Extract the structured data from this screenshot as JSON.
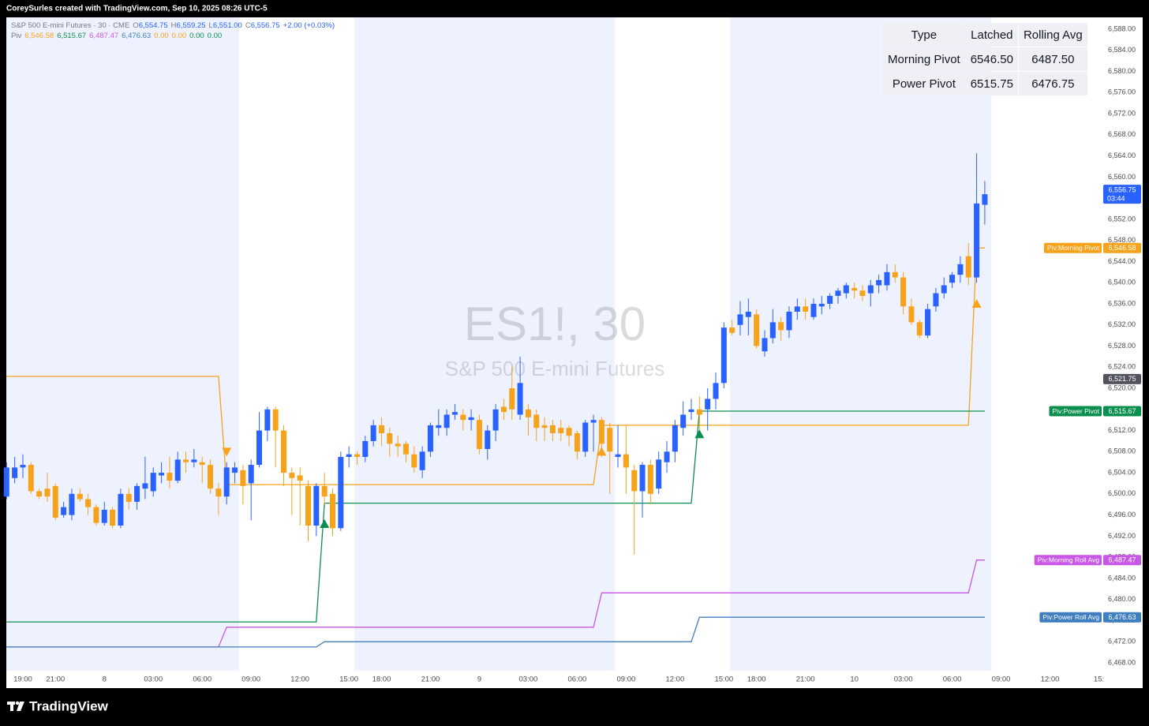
{
  "header": {
    "credit": "CoreySurles created with TradingView.com, Sep 10, 2025 08:26 UTC-5"
  },
  "footer": {
    "brand": "TradingView"
  },
  "chart_data": {
    "type": "candlestick",
    "watermark": {
      "symbol": "ES1!, 30",
      "description": "S&P 500 E-mini Futures"
    },
    "legend": {
      "symbol": "S&P 500 E-mini Futures · 30 · CME",
      "ohlc": [
        {
          "key": "O",
          "value": "6,554.75"
        },
        {
          "key": "H",
          "value": "6,559.25"
        },
        {
          "key": "L",
          "value": "6,551.00"
        },
        {
          "key": "C",
          "value": "6,556.75"
        }
      ],
      "change": "+2.00 (+0.03%)",
      "indicator": "Piv",
      "indicator_values": [
        {
          "text": "6,546.58",
          "color": "#f7a21b"
        },
        {
          "text": "6,515.67",
          "color": "#0b8f4f"
        },
        {
          "text": "6,487.47",
          "color": "#c957e6"
        },
        {
          "text": "6,476.63",
          "color": "#3f7ebf"
        },
        {
          "text": "0.00",
          "color": "#f7a21b"
        },
        {
          "text": "0.00",
          "color": "#f7a21b"
        },
        {
          "text": "0.00",
          "color": "#0b8f4f"
        },
        {
          "text": "0.00",
          "color": "#0b8f4f"
        }
      ]
    },
    "table": {
      "header": [
        "Type",
        "Latched",
        "Rolling Avg"
      ],
      "rows": [
        [
          "Morning Pivot",
          "6546.50",
          "6487.50"
        ],
        [
          "Power Pivot",
          "6515.75",
          "6476.75"
        ]
      ]
    },
    "up_color": "#2962ff",
    "down_color": "#f7a21b",
    "categories": [
      null,
      null,
      "19:00",
      null,
      null,
      null,
      "21:00",
      null,
      null,
      null,
      null,
      null,
      "8",
      null,
      null,
      null,
      null,
      null,
      "03:00",
      null,
      null,
      null,
      null,
      null,
      "06:00",
      null,
      null,
      null,
      null,
      null,
      "09:00",
      null,
      null,
      null,
      null,
      null,
      "12:00",
      null,
      null,
      null,
      null,
      null,
      "15:00",
      null,
      null,
      null,
      "18:00",
      null,
      null,
      null,
      null,
      null,
      "21:00",
      null,
      null,
      null,
      null,
      null,
      "9",
      null,
      null,
      null,
      null,
      null,
      "03:00",
      null,
      null,
      null,
      null,
      null,
      "06:00",
      null,
      null,
      null,
      null,
      null,
      "09:00",
      null,
      null,
      null,
      null,
      null,
      "12:00",
      null,
      null,
      null,
      null,
      null,
      "15:00",
      null,
      null,
      null,
      "18:00",
      null,
      null,
      null,
      null,
      null,
      "21:00",
      null,
      null,
      null,
      null,
      null,
      "10",
      null,
      null,
      null,
      null,
      null,
      "03:00",
      null,
      null,
      null,
      null,
      null,
      "06:00",
      null,
      null,
      null,
      null
    ],
    "future_categories": [
      "09:00",
      "12:00",
      "15:"
    ],
    "open": [
      6499.5,
      6503,
      6505,
      6505.5,
      6500.5,
      6501,
      6501.5,
      6496,
      6496,
      6500,
      6499,
      6497.5,
      6494.5,
      6497,
      6494,
      6500,
      6498.5,
      6501,
      6500.5,
      6503.5,
      6504,
      6502.5,
      6506.5,
      6506,
      6506,
      6505.5,
      6501,
      6499.5,
      6504,
      6504.5,
      6502,
      6505.5,
      6512,
      6516,
      6512,
      6504,
      6503.5,
      6501.5,
      6494,
      6501.5,
      6500,
      6493.5,
      6507,
      6507.5,
      6507,
      6510,
      6513,
      6511.5,
      6509.5,
      6509.5,
      6507.5,
      6504.5,
      6508,
      6512.5,
      6512.5,
      6515,
      6515,
      6514,
      6514,
      6508.5,
      6512,
      6516.5,
      6520,
      6515,
      6516,
      6515,
      6513,
      6513,
      6512.5,
      6512.5,
      6511.5,
      6508,
      6513.5,
      6514,
      6512.5,
      6507,
      6507.5,
      6504.5,
      6500.5,
      6505.5,
      6501,
      6506,
      6508,
      6512.5,
      6515.5,
      6516,
      6516,
      6518,
      6521,
      6531.5,
      6532,
      6533.5,
      6534,
      6527,
      6529.5,
      6532.5,
      6531,
      6534.5,
      6535.5,
      6533.5,
      6535.5,
      6536,
      6537.5,
      6538,
      6539,
      6538.5,
      6538,
      6539.5,
      6539.5,
      6542,
      6541,
      6535.5,
      6532.5,
      6530,
      6535.5,
      6538,
      6540,
      6541.5,
      6545,
      6541,
      6554.75
    ],
    "high": [
      6506,
      6507,
      6507.5,
      6506,
      6501,
      6504,
      6502,
      6498.5,
      6501,
      6501,
      6500,
      6498,
      6498.5,
      6497.5,
      6501,
      6501,
      6502,
      6507,
      6505,
      6506,
      6507,
      6508,
      6508,
      6508.5,
      6507,
      6506.5,
      6502,
      6506,
      6506,
      6505.5,
      6506.5,
      6515.5,
      6516.5,
      6516.5,
      6513,
      6505,
      6505,
      6502.5,
      6502,
      6504,
      6501,
      6508,
      6509,
      6508,
      6511,
      6514,
      6514.5,
      6512.5,
      6511,
      6510,
      6509,
      6509,
      6513.5,
      6516,
      6516,
      6517,
      6516,
      6516,
      6515,
      6513,
      6517,
      6518,
      6524,
      6526,
      6517,
      6516,
      6514.5,
      6514,
      6514,
      6513,
      6512,
      6514,
      6515,
      6514.5,
      6513.5,
      6513,
      6513,
      6505.5,
      6506,
      6506.5,
      6508,
      6510,
      6514,
      6517.5,
      6518,
      6518.5,
      6520,
      6523,
      6532.5,
      6533,
      6536.5,
      6537,
      6535,
      6531,
      6535,
      6533.5,
      6535.5,
      6537,
      6537,
      6537,
      6537.5,
      6538,
      6539,
      6540,
      6540,
      6539.5,
      6540.5,
      6541.5,
      6543.5,
      6543.5,
      6542,
      6537,
      6533,
      6536,
      6539,
      6541,
      6542,
      6545,
      6547.5,
      6564.5,
      6559.25
    ],
    "low": [
      6499,
      6502,
      6503,
      6500,
      6499,
      6498.5,
      6495,
      6495.5,
      6495,
      6498.5,
      6496,
      6494,
      6494,
      6493.5,
      6493.5,
      6497,
      6497,
      6499,
      6499.5,
      6502,
      6501,
      6502,
      6504,
      6505,
      6502,
      6500,
      6496,
      6498,
      6502,
      6498,
      6495,
      6505,
      6510,
      6505,
      6501.5,
      6496,
      6494,
      6491,
      6492,
      6498,
      6492,
      6493,
      6505,
      6505.5,
      6506,
      6509,
      6509,
      6507,
      6507,
      6506,
      6504,
      6503,
      6507,
      6511,
      6511,
      6514,
      6512,
      6512,
      6507.5,
      6506.5,
      6510,
      6514,
      6514,
      6514,
      6511,
      6510,
      6510,
      6510,
      6510,
      6509,
      6506.5,
      6507,
      6508,
      6507,
      6500,
      6505,
      6500,
      6488.5,
      6495.5,
      6498,
      6500,
      6504,
      6506,
      6511,
      6514,
      6512,
      6512,
      6516,
      6520,
      6530,
      6530,
      6530,
      6527.5,
      6526,
      6528.5,
      6529,
      6529.5,
      6533,
      6533,
      6533,
      6534,
      6535,
      6536,
      6537,
      6537,
      6536.5,
      6535.5,
      6538,
      6538.5,
      6540,
      6534,
      6532,
      6529.5,
      6529.5,
      6534.5,
      6537,
      6539,
      6540,
      6539.5,
      6540,
      6551
    ],
    "close": [
      6505,
      6505,
      6505.5,
      6500.5,
      6499.5,
      6499.5,
      6495.5,
      6497.5,
      6500,
      6499,
      6497.5,
      6494.5,
      6497,
      6494,
      6500,
      6498.5,
      6501.5,
      6502,
      6504,
      6504,
      6502.5,
      6506.5,
      6506,
      6506.5,
      6505.5,
      6501,
      6499.5,
      6505,
      6505,
      6501.5,
      6505.5,
      6512,
      6516,
      6512,
      6504,
      6503,
      6502.5,
      6494,
      6501.5,
      6499.5,
      6493.5,
      6507,
      6507.5,
      6507,
      6510,
      6513,
      6511.5,
      6509.5,
      6509,
      6507.5,
      6505,
      6508,
      6513,
      6513,
      6515,
      6515.5,
      6514,
      6514.5,
      6508.5,
      6512,
      6516,
      6515.5,
      6516,
      6521,
      6514.5,
      6512.5,
      6512.5,
      6511.5,
      6511.5,
      6511,
      6508,
      6513.5,
      6514,
      6509.5,
      6508,
      6507.5,
      6505,
      6500.5,
      6505.5,
      6500,
      6506.5,
      6508,
      6513,
      6515,
      6516,
      6515,
      6518,
      6521,
      6531.5,
      6530.5,
      6534,
      6534.5,
      6528,
      6529.5,
      6532.5,
      6531,
      6534.5,
      6535.5,
      6534.5,
      6536,
      6536,
      6537.5,
      6538.5,
      6539.5,
      6538.5,
      6537.5,
      6539.5,
      6540.5,
      6542,
      6541,
      6535.5,
      6532.5,
      6530,
      6535,
      6538,
      6539.5,
      6541.5,
      6543.5,
      6541,
      6555,
      6556.75
    ],
    "last_price": {
      "label": "6,556.75",
      "countdown": "03:44"
    },
    "lines": [
      {
        "name": "Piv:Morning Pivot",
        "color": "#f7a21b",
        "value_label": "6,546.58",
        "x": [
          0,
          26,
          27,
          72,
          73,
          118,
          119,
          120
        ],
        "values": [
          6522.25,
          6522.25,
          6501.75,
          6501.75,
          6513,
          6513,
          6546.58,
          6546.58
        ]
      },
      {
        "name": "Piv:Power Pivot",
        "color": "#0b8f4f",
        "value_label": "6,515.67",
        "x": [
          0,
          38,
          39,
          84,
          85,
          120
        ],
        "values": [
          6475.75,
          6475.75,
          6498.25,
          6498.25,
          6515.67,
          6515.67
        ]
      },
      {
        "name": "Piv:Morning Roll Avg",
        "color": "#c957e6",
        "value_label": "6,487.47",
        "x": [
          0,
          26,
          27,
          72,
          73,
          118,
          119,
          120
        ],
        "values": [
          6471,
          6471,
          6474.75,
          6474.75,
          6481.25,
          6481.25,
          6487.47,
          6487.47
        ]
      },
      {
        "name": "Piv:Power Roll Avg",
        "color": "#3f7ebf",
        "value_label": "6,476.63",
        "x": [
          0,
          38,
          39,
          84,
          85,
          120
        ],
        "values": [
          6471,
          6471,
          6472,
          6472,
          6476.63,
          6476.63
        ]
      }
    ],
    "signals": [
      {
        "x": 27,
        "value": 6508,
        "direction": "down",
        "color": "#f7a21b"
      },
      {
        "x": 39,
        "value": 6494.3,
        "direction": "up",
        "color": "#0b8f4f"
      },
      {
        "x": 73,
        "value": 6508,
        "direction": "up",
        "color": "#f7a21b"
      },
      {
        "x": 85,
        "value": 6511.3,
        "direction": "up",
        "color": "#0b8f4f"
      },
      {
        "x": 119,
        "value": 6536,
        "direction": "up",
        "color": "#f7a21b"
      }
    ],
    "price_tags": [
      {
        "value": 6521.75,
        "label": "6,521.75",
        "color": "#50535e"
      }
    ],
    "ylim": [
      6466.5,
      6590.25
    ],
    "yticks": [
      {
        "value": 6468,
        "label": "6,468.00"
      },
      {
        "value": 6472,
        "label": "6,472.00"
      },
      {
        "value": 6476,
        "label": "6,476.00"
      },
      {
        "value": 6480,
        "label": "6,480.00"
      },
      {
        "value": 6484,
        "label": "6,484.00"
      },
      {
        "value": 6488,
        "label": "6,488.00"
      },
      {
        "value": 6492,
        "label": "6,492.00"
      },
      {
        "value": 6496,
        "label": "6,496.00"
      },
      {
        "value": 6500,
        "label": "6,500.00"
      },
      {
        "value": 6504,
        "label": "6,504.00"
      },
      {
        "value": 6508,
        "label": "6,508.00"
      },
      {
        "value": 6512,
        "label": "6,512.00"
      },
      {
        "value": 6516,
        "label": "6,516.00"
      },
      {
        "value": 6520,
        "label": "6,520.00"
      },
      {
        "value": 6524,
        "label": "6,524.00"
      },
      {
        "value": 6528,
        "label": "6,528.00"
      },
      {
        "value": 6532,
        "label": "6,532.00"
      },
      {
        "value": 6536,
        "label": "6,536.00"
      },
      {
        "value": 6540,
        "label": "6,540.00"
      },
      {
        "value": 6544,
        "label": "6,544.00"
      },
      {
        "value": 6548,
        "label": "6,548.00"
      },
      {
        "value": 6552,
        "label": "6,552.00"
      },
      {
        "value": 6556,
        "label": "6,556.00"
      },
      {
        "value": 6560,
        "label": "6,560.00"
      },
      {
        "value": 6564,
        "label": "6,564.00"
      },
      {
        "value": 6568,
        "label": "6,568.00"
      },
      {
        "value": 6572,
        "label": "6,572.00"
      },
      {
        "value": 6576,
        "label": "6,576.00"
      },
      {
        "value": 6580,
        "label": "6,580.00"
      },
      {
        "value": 6584,
        "label": "6,584.00"
      },
      {
        "value": 6588,
        "label": "6,588.00"
      }
    ],
    "grid": false
  }
}
